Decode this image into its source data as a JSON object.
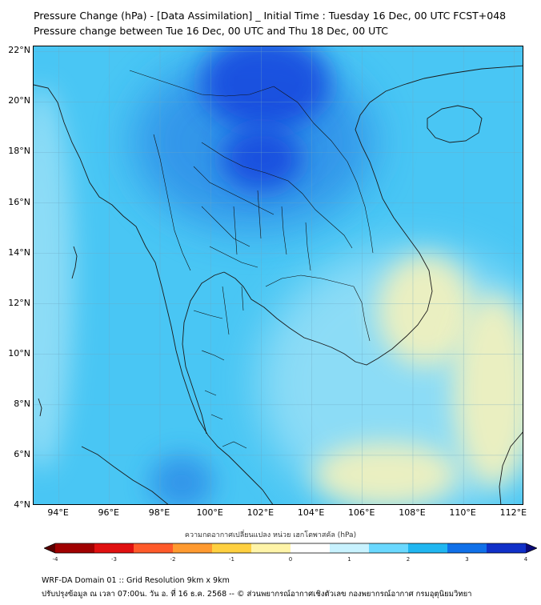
{
  "title": {
    "line1": "Pressure Change (hPa) - [Data Assimilation] _ Initial Time : Tuesday 16 Dec, 00 UTC FCST+048",
    "line2": "Pressure change between Tue 16 Dec, 00 UTC and Thu 18 Dec, 00 UTC"
  },
  "axes": {
    "lat_labels": [
      "22°N",
      "20°N",
      "18°N",
      "16°N",
      "14°N",
      "12°N",
      "10°N",
      "8°N",
      "6°N",
      "4°N"
    ],
    "lat_values": [
      22,
      20,
      18,
      16,
      14,
      12,
      10,
      8,
      6,
      4
    ],
    "lon_labels": [
      "94°E",
      "96°E",
      "98°E",
      "100°E",
      "102°E",
      "104°E",
      "106°E",
      "108°E",
      "110°E",
      "112°E"
    ],
    "lon_values": [
      94,
      96,
      98,
      100,
      102,
      104,
      106,
      108,
      110,
      112
    ],
    "lat_range": [
      4,
      22.2
    ],
    "lon_range": [
      93,
      112.4
    ]
  },
  "colorbar": {
    "title": "ความกดอากาศเปลี่ยนแปลง หน่วย เฮกโตพาสคัล (hPa)",
    "ticks": [
      "-4",
      "-3",
      "-2",
      "-1",
      "0",
      "1",
      "2",
      "3",
      "4"
    ],
    "range": [
      -4,
      4
    ],
    "colors": [
      "#5a0000",
      "#a00000",
      "#e01010",
      "#ff5a2a",
      "#ff9a30",
      "#ffd040",
      "#fff4a8",
      "#ffffff",
      "#c8f2ff",
      "#6ad8ff",
      "#20b6f0",
      "#1070e8",
      "#1030c8",
      "#0a0a78"
    ]
  },
  "map_colors": {
    "ocean": "#49c6f4",
    "strong_fall": "#1245de",
    "moderate_fall": "#2e8ee8",
    "neutral": "#c4eef8",
    "rise": "#fbf3b8",
    "coast": "#1a1a1a",
    "border": "#111111",
    "grid": "#6fa5bf"
  },
  "footer": {
    "line1": "WRF-DA Domain 01 :: Grid Resolution 9km x 9km",
    "line2": "ปรับปรุงข้อมูล ณ เวลา 07:00น. วัน อ. ที่ 16 ธ.ค. 2568 -- © ส่วนพยากรณ์อากาศเชิงตัวเลข กองพยากรณ์อากาศ กรมอุตุนิยมวิทยา"
  }
}
